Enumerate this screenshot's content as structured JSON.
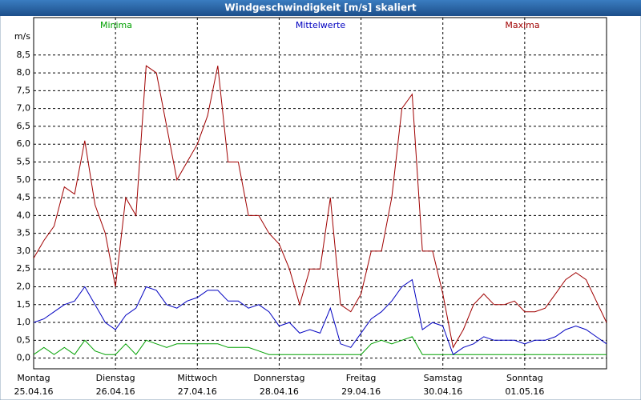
{
  "chart_data": {
    "type": "line",
    "title": "Windgeschwindigkeit [m/s] skaliert",
    "y_label": "m/s",
    "x": [
      0,
      3,
      6,
      9,
      12,
      15,
      18,
      21,
      24,
      27,
      30,
      33,
      36,
      39,
      42,
      45,
      48,
      51,
      54,
      57,
      60,
      63,
      66,
      69,
      72,
      75,
      78,
      81,
      84,
      87,
      90,
      93,
      96,
      99,
      102,
      105,
      108,
      111,
      114,
      117,
      120,
      123,
      126,
      129,
      132,
      135,
      138,
      141,
      144,
      147,
      150,
      153,
      156,
      159,
      162,
      165,
      168
    ],
    "xlim": [
      0,
      168
    ],
    "xticks": [
      {
        "value": 0,
        "label": "Montag",
        "date": "25.04.16"
      },
      {
        "value": 24,
        "label": "Dienstag",
        "date": "26.04.16"
      },
      {
        "value": 48,
        "label": "Mittwoch",
        "date": "27.04.16"
      },
      {
        "value": 72,
        "label": "Donnerstag",
        "date": "28.04.16"
      },
      {
        "value": 96,
        "label": "Freitag",
        "date": "29.04.16"
      },
      {
        "value": 120,
        "label": "Samstag",
        "date": "30.04.16"
      },
      {
        "value": 144,
        "label": "Sonntag",
        "date": "01.05.16"
      }
    ],
    "ylim": [
      -0.3,
      9.55
    ],
    "yticks": [
      {
        "value": 0,
        "label": "0,0"
      },
      {
        "value": 0.5,
        "label": "0,5"
      },
      {
        "value": 1,
        "label": "1,0"
      },
      {
        "value": 1.5,
        "label": "1,5"
      },
      {
        "value": 2,
        "label": "2,0"
      },
      {
        "value": 2.5,
        "label": "2,5"
      },
      {
        "value": 3,
        "label": "3,0"
      },
      {
        "value": 3.5,
        "label": "3,5"
      },
      {
        "value": 4,
        "label": "4,0"
      },
      {
        "value": 4.5,
        "label": "4,5"
      },
      {
        "value": 5,
        "label": "5,0"
      },
      {
        "value": 5.5,
        "label": "5,5"
      },
      {
        "value": 6,
        "label": "6,0"
      },
      {
        "value": 6.5,
        "label": "6,5"
      },
      {
        "value": 7,
        "label": "7,0"
      },
      {
        "value": 7.5,
        "label": "7,5"
      },
      {
        "value": 8,
        "label": "8,0"
      },
      {
        "value": 8.5,
        "label": "8,5"
      }
    ],
    "grid": true,
    "series": [
      {
        "name": "Minima",
        "color": "#00a000",
        "values": [
          0.1,
          0.3,
          0.1,
          0.3,
          0.1,
          0.5,
          0.2,
          0.1,
          0.1,
          0.4,
          0.1,
          0.5,
          0.4,
          0.3,
          0.4,
          0.4,
          0.4,
          0.4,
          0.4,
          0.3,
          0.3,
          0.3,
          0.2,
          0.1,
          0.1,
          0.1,
          0.1,
          0.1,
          0.1,
          0.1,
          0.1,
          0.1,
          0.1,
          0.4,
          0.5,
          0.4,
          0.5,
          0.6,
          0.1,
          0.1,
          0.1,
          0.1,
          0.1,
          0.1,
          0.1,
          0.1,
          0.1,
          0.1,
          0.1,
          0.1,
          0.1,
          0.1,
          0.1,
          0.1,
          0.1,
          0.1,
          0.1
        ]
      },
      {
        "name": "Mittelwerte",
        "color": "#0000c0",
        "values": [
          1.0,
          1.1,
          1.3,
          1.5,
          1.6,
          2.0,
          1.5,
          1.0,
          0.8,
          1.2,
          1.4,
          2.0,
          1.9,
          1.5,
          1.4,
          1.6,
          1.7,
          1.9,
          1.9,
          1.6,
          1.6,
          1.4,
          1.5,
          1.3,
          0.9,
          1.0,
          0.7,
          0.8,
          0.7,
          1.4,
          0.4,
          0.3,
          0.7,
          1.1,
          1.3,
          1.6,
          2.0,
          2.2,
          0.8,
          1.0,
          0.9,
          0.1,
          0.3,
          0.4,
          0.6,
          0.5,
          0.5,
          0.5,
          0.4,
          0.5,
          0.5,
          0.6,
          0.8,
          0.9,
          0.8,
          0.6,
          0.4
        ]
      },
      {
        "name": "Maxima",
        "color": "#a00000",
        "values": [
          2.8,
          3.3,
          3.7,
          4.8,
          4.6,
          6.1,
          4.3,
          3.5,
          2.0,
          4.5,
          4.0,
          8.2,
          8.0,
          6.5,
          5.0,
          5.5,
          6.0,
          6.8,
          8.2,
          5.5,
          5.5,
          4.0,
          4.0,
          3.5,
          3.2,
          2.5,
          1.5,
          2.5,
          2.5,
          4.5,
          1.5,
          1.3,
          1.8,
          3.0,
          3.0,
          4.5,
          7.0,
          7.4,
          3.0,
          3.0,
          1.8,
          0.3,
          0.8,
          1.5,
          1.8,
          1.5,
          1.5,
          1.6,
          1.3,
          1.3,
          1.4,
          1.8,
          2.2,
          2.4,
          2.2,
          1.6,
          1.0
        ]
      }
    ]
  }
}
